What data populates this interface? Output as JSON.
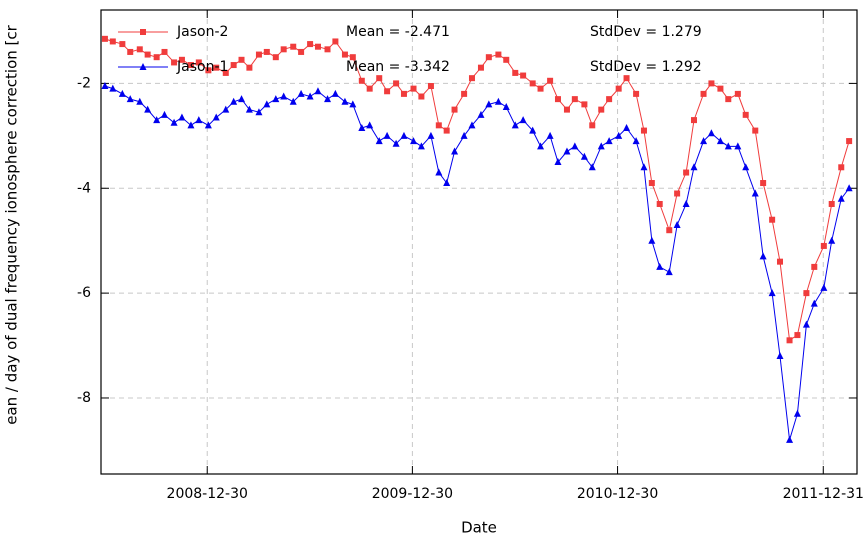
{
  "chart_data": {
    "type": "line",
    "x_label": "Date",
    "y_label": "ean / day of dual frequency ionosphere correction [cr",
    "xlim": [
      "2008-06-24",
      "2012-02-29"
    ],
    "ylim": [
      -9.45,
      -0.6
    ],
    "xticks": [
      "2008-12-30",
      "2009-12-30",
      "2010-12-30",
      "2011-12-31"
    ],
    "yticks": [
      -8,
      -6,
      -4,
      -2
    ],
    "grid": true,
    "legend": "upper left",
    "annotations": [
      "Mean = -2.471",
      "StdDev = 1.279",
      "Mean = -3.342",
      "StdDev = 1.292"
    ],
    "x": [
      "2008-07-01",
      "2008-07-15",
      "2008-08-01",
      "2008-08-15",
      "2008-09-01",
      "2008-09-15",
      "2008-10-01",
      "2008-10-15",
      "2008-11-01",
      "2008-11-15",
      "2008-12-01",
      "2008-12-15",
      "2009-01-01",
      "2009-01-15",
      "2009-02-01",
      "2009-02-15",
      "2009-03-01",
      "2009-03-15",
      "2009-04-01",
      "2009-04-15",
      "2009-05-01",
      "2009-05-15",
      "2009-06-01",
      "2009-06-15",
      "2009-07-01",
      "2009-07-15",
      "2009-08-01",
      "2009-08-15",
      "2009-09-01",
      "2009-09-15",
      "2009-10-01",
      "2009-10-15",
      "2009-11-01",
      "2009-11-15",
      "2009-12-01",
      "2009-12-15",
      "2010-01-01",
      "2010-01-15",
      "2010-02-01",
      "2010-02-15",
      "2010-03-01",
      "2010-03-15",
      "2010-04-01",
      "2010-04-15",
      "2010-05-01",
      "2010-05-15",
      "2010-06-01",
      "2010-06-15",
      "2010-07-01",
      "2010-07-15",
      "2010-08-01",
      "2010-08-15",
      "2010-09-01",
      "2010-09-15",
      "2010-10-01",
      "2010-10-15",
      "2010-11-01",
      "2010-11-15",
      "2010-12-01",
      "2010-12-15",
      "2011-01-01",
      "2011-01-15",
      "2011-02-01",
      "2011-02-15",
      "2011-03-01",
      "2011-03-15",
      "2011-04-01",
      "2011-04-15",
      "2011-05-01",
      "2011-05-15",
      "2011-06-01",
      "2011-06-15",
      "2011-07-01",
      "2011-07-15",
      "2011-08-01",
      "2011-08-15",
      "2011-09-01",
      "2011-09-15",
      "2011-10-01",
      "2011-10-15",
      "2011-11-01",
      "2011-11-15",
      "2011-12-01",
      "2011-12-15",
      "2012-01-01",
      "2012-01-15",
      "2012-02-01",
      "2012-02-15"
    ],
    "series": [
      {
        "name": "Jason-2",
        "color": "#f03c3c",
        "marker": "square",
        "values": [
          -1.15,
          -1.2,
          -1.25,
          -1.4,
          -1.35,
          -1.45,
          -1.5,
          -1.4,
          -1.6,
          -1.55,
          -1.65,
          -1.6,
          -1.75,
          -1.7,
          -1.8,
          -1.65,
          -1.55,
          -1.7,
          -1.45,
          -1.4,
          -1.5,
          -1.35,
          -1.3,
          -1.4,
          -1.25,
          -1.3,
          -1.35,
          -1.2,
          -1.45,
          -1.5,
          -1.95,
          -2.1,
          -1.9,
          -2.15,
          -2.0,
          -2.2,
          -2.1,
          -2.25,
          -2.05,
          -2.8,
          -2.9,
          -2.5,
          -2.2,
          -1.9,
          -1.7,
          -1.5,
          -1.45,
          -1.55,
          -1.8,
          -1.85,
          -2.0,
          -2.1,
          -1.95,
          -2.3,
          -2.5,
          -2.3,
          -2.4,
          -2.8,
          -2.5,
          -2.3,
          -2.1,
          -1.9,
          -2.2,
          -2.9,
          -3.9,
          -4.3,
          -4.8,
          -4.1,
          -3.7,
          -2.7,
          -2.2,
          -2.0,
          -2.1,
          -2.3,
          -2.2,
          -2.6,
          -2.9,
          -3.9,
          -4.6,
          -5.4,
          -6.9,
          -6.8,
          -6.0,
          -5.5,
          -5.1,
          -4.3,
          -3.6,
          -3.1
        ]
      },
      {
        "name": "Jason-1",
        "color": "#0000ee",
        "marker": "triangle",
        "values": [
          -2.05,
          -2.1,
          -2.2,
          -2.3,
          -2.35,
          -2.5,
          -2.7,
          -2.6,
          -2.75,
          -2.65,
          -2.8,
          -2.7,
          -2.8,
          -2.65,
          -2.5,
          -2.35,
          -2.3,
          -2.5,
          -2.55,
          -2.4,
          -2.3,
          -2.25,
          -2.35,
          -2.2,
          -2.25,
          -2.15,
          -2.3,
          -2.2,
          -2.35,
          -2.4,
          -2.85,
          -2.8,
          -3.1,
          -3.0,
          -3.15,
          -3.0,
          -3.1,
          -3.2,
          -3.0,
          -3.7,
          -3.9,
          -3.3,
          -3.0,
          -2.8,
          -2.6,
          -2.4,
          -2.35,
          -2.45,
          -2.8,
          -2.7,
          -2.9,
          -3.2,
          -3.0,
          -3.5,
          -3.3,
          -3.2,
          -3.4,
          -3.6,
          -3.2,
          -3.1,
          -3.0,
          -2.85,
          -3.1,
          -3.6,
          -5.0,
          -5.5,
          -5.6,
          -4.7,
          -4.3,
          -3.6,
          -3.1,
          -2.95,
          -3.1,
          -3.2,
          -3.2,
          -3.6,
          -4.1,
          -5.3,
          -6.0,
          -7.2,
          -8.8,
          -8.3,
          -6.6,
          -6.2,
          -5.9,
          -5.0,
          -4.2,
          -4.0
        ]
      }
    ]
  }
}
